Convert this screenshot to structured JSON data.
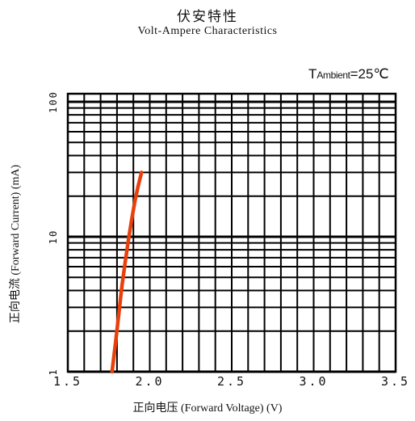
{
  "chart_data": {
    "type": "line",
    "title": "伏安特性",
    "subtitle": "Volt-Ampere Characteristics",
    "annotation": {
      "prefix": "T",
      "sub": "Ambient",
      "value": "=25℃"
    },
    "xlabel": "正向电压 (Forward Voltage) (V)",
    "ylabel": "正向电流 (Forward Current) (mA)",
    "xlim": [
      1.5,
      3.5
    ],
    "ylim": [
      1,
      150
    ],
    "yscale": "log",
    "grid": true,
    "xticks": [
      {
        "value": 1.5,
        "label": "1.5"
      },
      {
        "value": 2.0,
        "label": "2.0"
      },
      {
        "value": 2.5,
        "label": "2.5"
      },
      {
        "value": 3.0,
        "label": "3.0"
      },
      {
        "value": 3.5,
        "label": "3.5"
      }
    ],
    "yticks": [
      {
        "value": 1,
        "label": "1"
      },
      {
        "value": 10,
        "label": "10"
      },
      {
        "value": 100,
        "label": "100"
      }
    ],
    "series": [
      {
        "color": "#e8400c",
        "x": [
          1.77,
          1.79,
          1.81,
          1.83,
          1.85,
          1.87,
          1.89,
          1.91,
          1.93,
          1.95
        ],
        "y": [
          1.0,
          1.6,
          2.6,
          4.3,
          6.5,
          9.5,
          13.5,
          18.5,
          24.0,
          30.0
        ]
      }
    ]
  }
}
